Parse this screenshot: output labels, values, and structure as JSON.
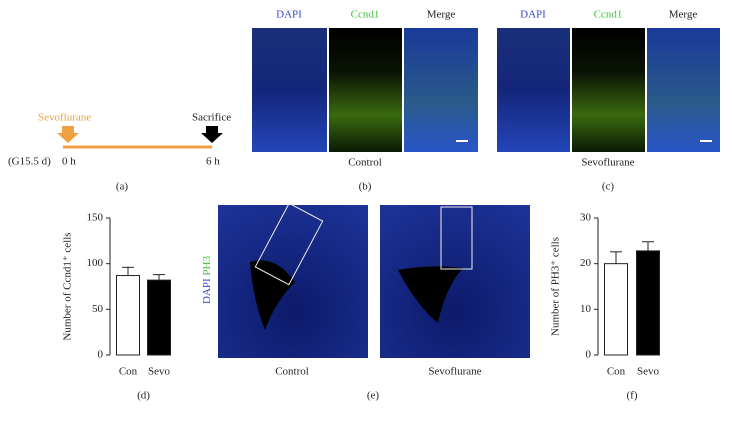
{
  "panel_a": {
    "drug": "Sevoflurane",
    "endpoint": "Sacrifice",
    "stage": "(G15.5 d)",
    "start": "0 h",
    "end": "6 h",
    "label": "(a)"
  },
  "panel_b": {
    "channels": [
      "DAPI",
      "Ccnd1",
      "Merge"
    ],
    "caption": "Control",
    "label": "(b)"
  },
  "panel_c": {
    "channels": [
      "DAPI",
      "Ccnd1",
      "Merge"
    ],
    "caption": "Sevoflurane",
    "label": "(c)"
  },
  "panel_e": {
    "stain": [
      "DAPI",
      "PH3"
    ],
    "captions": [
      "Control",
      "Sevoflurane"
    ],
    "label": "(e)"
  },
  "chart_data": [
    {
      "type": "bar",
      "ylabel": "Number of Ccnd1⁺ cells",
      "categories": [
        "Con",
        "Sevo"
      ],
      "values": [
        87,
        82
      ],
      "errors": [
        9,
        6
      ],
      "colors": [
        "#ffffff",
        "#000000"
      ],
      "ylim": [
        0,
        150
      ],
      "yticks": [
        0,
        50,
        100,
        150
      ],
      "panel_label": "(d)"
    },
    {
      "type": "bar",
      "ylabel": "Number of PH3⁺ cells",
      "categories": [
        "Con",
        "Sevo"
      ],
      "values": [
        20,
        22.8
      ],
      "errors": [
        2.6,
        2.0
      ],
      "colors": [
        "#ffffff",
        "#000000"
      ],
      "ylim": [
        0,
        30
      ],
      "yticks": [
        0,
        10,
        20,
        30
      ],
      "panel_label": "(f)"
    }
  ]
}
